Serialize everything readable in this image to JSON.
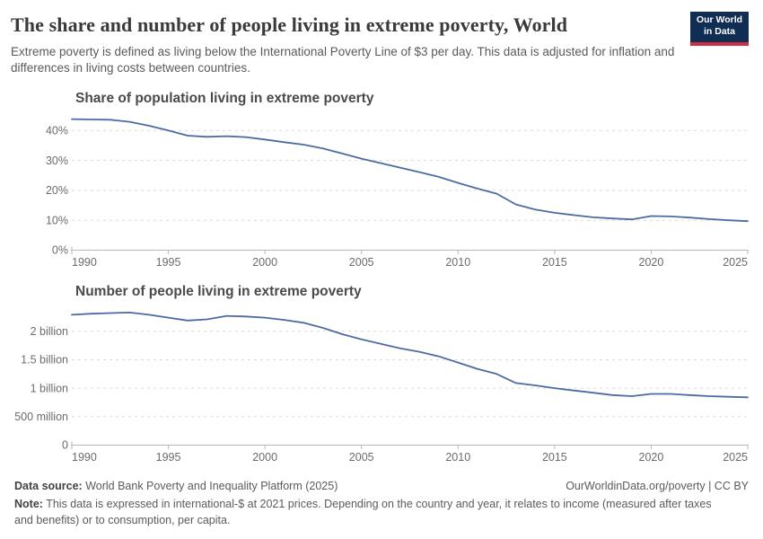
{
  "header": {
    "title": "The share and number of people living in extreme poverty, World",
    "subtitle": "Extreme poverty is defined as living below the International Poverty Line of $3 per day. This data is adjusted for inflation and differences in living costs between countries.",
    "logo": {
      "line1": "Our World",
      "line2": "in Data"
    }
  },
  "chart_data": [
    {
      "type": "line",
      "title": "Share of population living in extreme poverty",
      "series_name": "World",
      "x": [
        1990,
        1991,
        1992,
        1993,
        1994,
        1995,
        1996,
        1997,
        1998,
        1999,
        2000,
        2001,
        2002,
        2003,
        2004,
        2005,
        2006,
        2007,
        2008,
        2009,
        2010,
        2011,
        2012,
        2013,
        2014,
        2015,
        2016,
        2017,
        2018,
        2019,
        2020,
        2021,
        2022,
        2023,
        2024,
        2025
      ],
      "values": [
        43.8,
        43.7,
        43.6,
        42.9,
        41.6,
        40.0,
        38.3,
        37.9,
        38.1,
        37.8,
        37.0,
        36.1,
        35.3,
        34.0,
        32.3,
        30.6,
        29.1,
        27.6,
        26.1,
        24.5,
        22.5,
        20.6,
        18.9,
        15.3,
        13.6,
        12.5,
        11.7,
        11.0,
        10.6,
        10.3,
        11.4,
        11.3,
        10.9,
        10.4,
        10.0,
        9.7
      ],
      "unit": "%",
      "ylim": [
        0,
        45
      ],
      "yticks": [
        {
          "v": 0,
          "label": "0%"
        },
        {
          "v": 10,
          "label": "10%"
        },
        {
          "v": 20,
          "label": "20%"
        },
        {
          "v": 30,
          "label": "30%"
        },
        {
          "v": 40,
          "label": "40%"
        }
      ],
      "xticks": [
        1990,
        1995,
        2000,
        2005,
        2010,
        2015,
        2020,
        2025
      ],
      "grid": true,
      "legend": "none"
    },
    {
      "type": "line",
      "title": "Number of people living in extreme poverty",
      "series_name": "World",
      "x": [
        1990,
        1991,
        1992,
        1993,
        1994,
        1995,
        1996,
        1997,
        1998,
        1999,
        2000,
        2001,
        2002,
        2003,
        2004,
        2005,
        2006,
        2007,
        2008,
        2009,
        2010,
        2011,
        2012,
        2013,
        2014,
        2015,
        2016,
        2017,
        2018,
        2019,
        2020,
        2021,
        2022,
        2023,
        2024,
        2025
      ],
      "values": [
        2.29,
        2.31,
        2.32,
        2.33,
        2.29,
        2.24,
        2.19,
        2.21,
        2.27,
        2.26,
        2.24,
        2.2,
        2.15,
        2.06,
        1.95,
        1.86,
        1.78,
        1.7,
        1.64,
        1.56,
        1.45,
        1.34,
        1.25,
        1.09,
        1.05,
        1.0,
        0.96,
        0.92,
        0.88,
        0.86,
        0.9,
        0.9,
        0.88,
        0.86,
        0.85,
        0.84
      ],
      "unit": "billion people",
      "ylim": [
        0,
        2.4
      ],
      "yticks": [
        {
          "v": 0,
          "label": "0"
        },
        {
          "v": 0.5,
          "label": "500 million"
        },
        {
          "v": 1,
          "label": "1 billion"
        },
        {
          "v": 1.5,
          "label": "1.5 billion"
        },
        {
          "v": 2,
          "label": "2 billion"
        }
      ],
      "xticks": [
        1990,
        1995,
        2000,
        2005,
        2010,
        2015,
        2020,
        2025
      ],
      "grid": true,
      "legend": "none"
    }
  ],
  "colors": {
    "line": "#4d6ba3",
    "grid": "#d9d9d9",
    "axis": "#b9b9b9",
    "tick_text": "#6b6b6b",
    "logo_bg": "#102d54",
    "logo_bar": "#cf2e41"
  },
  "footer": {
    "source_label": "Data source:",
    "source_text": " World Bank Poverty and Inequality Platform (2025)",
    "rights": "OurWorldinData.org/poverty | CC BY",
    "note_label": "Note:",
    "note_text": " This data is expressed in international-$ at 2021 prices. Depending on the country and year, it relates to income (measured after taxes and benefits) or to consumption, per capita."
  }
}
